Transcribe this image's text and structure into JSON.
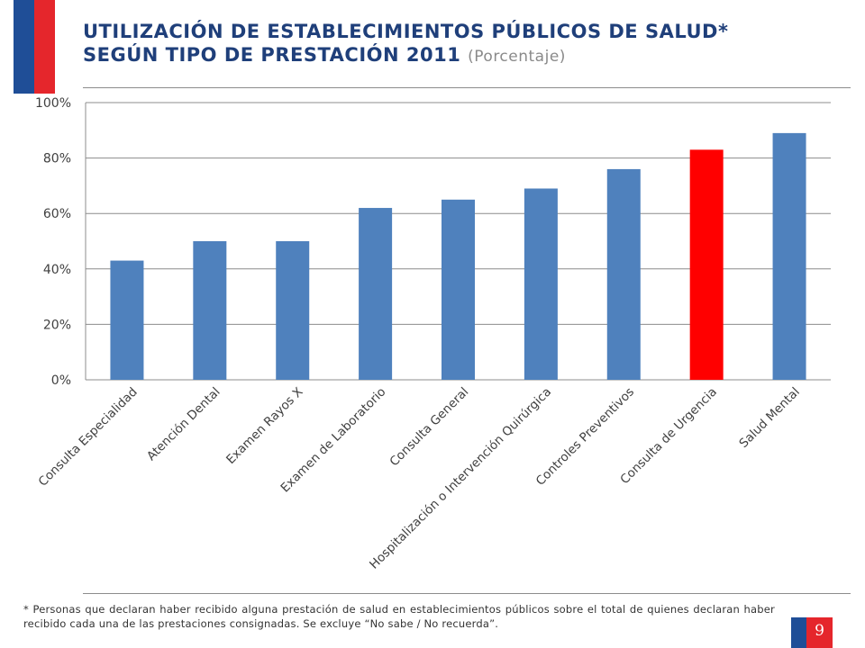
{
  "brand_colors": {
    "blue": "#1f4e97",
    "red": "#e5262c"
  },
  "title": {
    "line1": "UTILIZACIÓN DE ESTABLECIMIENTOS PÚBLICOS DE SALUD*",
    "line2": "SEGÚN TIPO DE PRESTACIÓN 2011",
    "subtitle": "(Porcentaje)"
  },
  "chart_data": {
    "type": "bar",
    "categories": [
      "Consulta Especialidad",
      "Atención Dental",
      "Examen Rayos X",
      "Examen de Laboratorio",
      "Consulta General",
      "Hospitalización o Intervención Quirúrgica",
      "Controles Preventivos",
      "Consulta de Urgencia",
      "Salud Mental"
    ],
    "values": [
      43,
      50,
      50,
      62,
      65,
      69,
      76,
      83,
      89
    ],
    "highlight_index": 7,
    "bar_color": "#4f81bd",
    "highlight_color": "#ff0000",
    "ylim": [
      0,
      100
    ],
    "yticks": [
      0,
      20,
      40,
      60,
      80,
      100
    ],
    "ytick_labels": [
      "0%",
      "20%",
      "40%",
      "60%",
      "80%",
      "100%"
    ],
    "grid": true
  },
  "footnote": "* Personas que declaran haber recibido alguna prestación de salud en establecimientos públicos sobre el total de quienes declaran haber recibido cada una de las prestaciones consignadas. Se excluye “No sabe / No recuerda”.",
  "page_number": "9"
}
